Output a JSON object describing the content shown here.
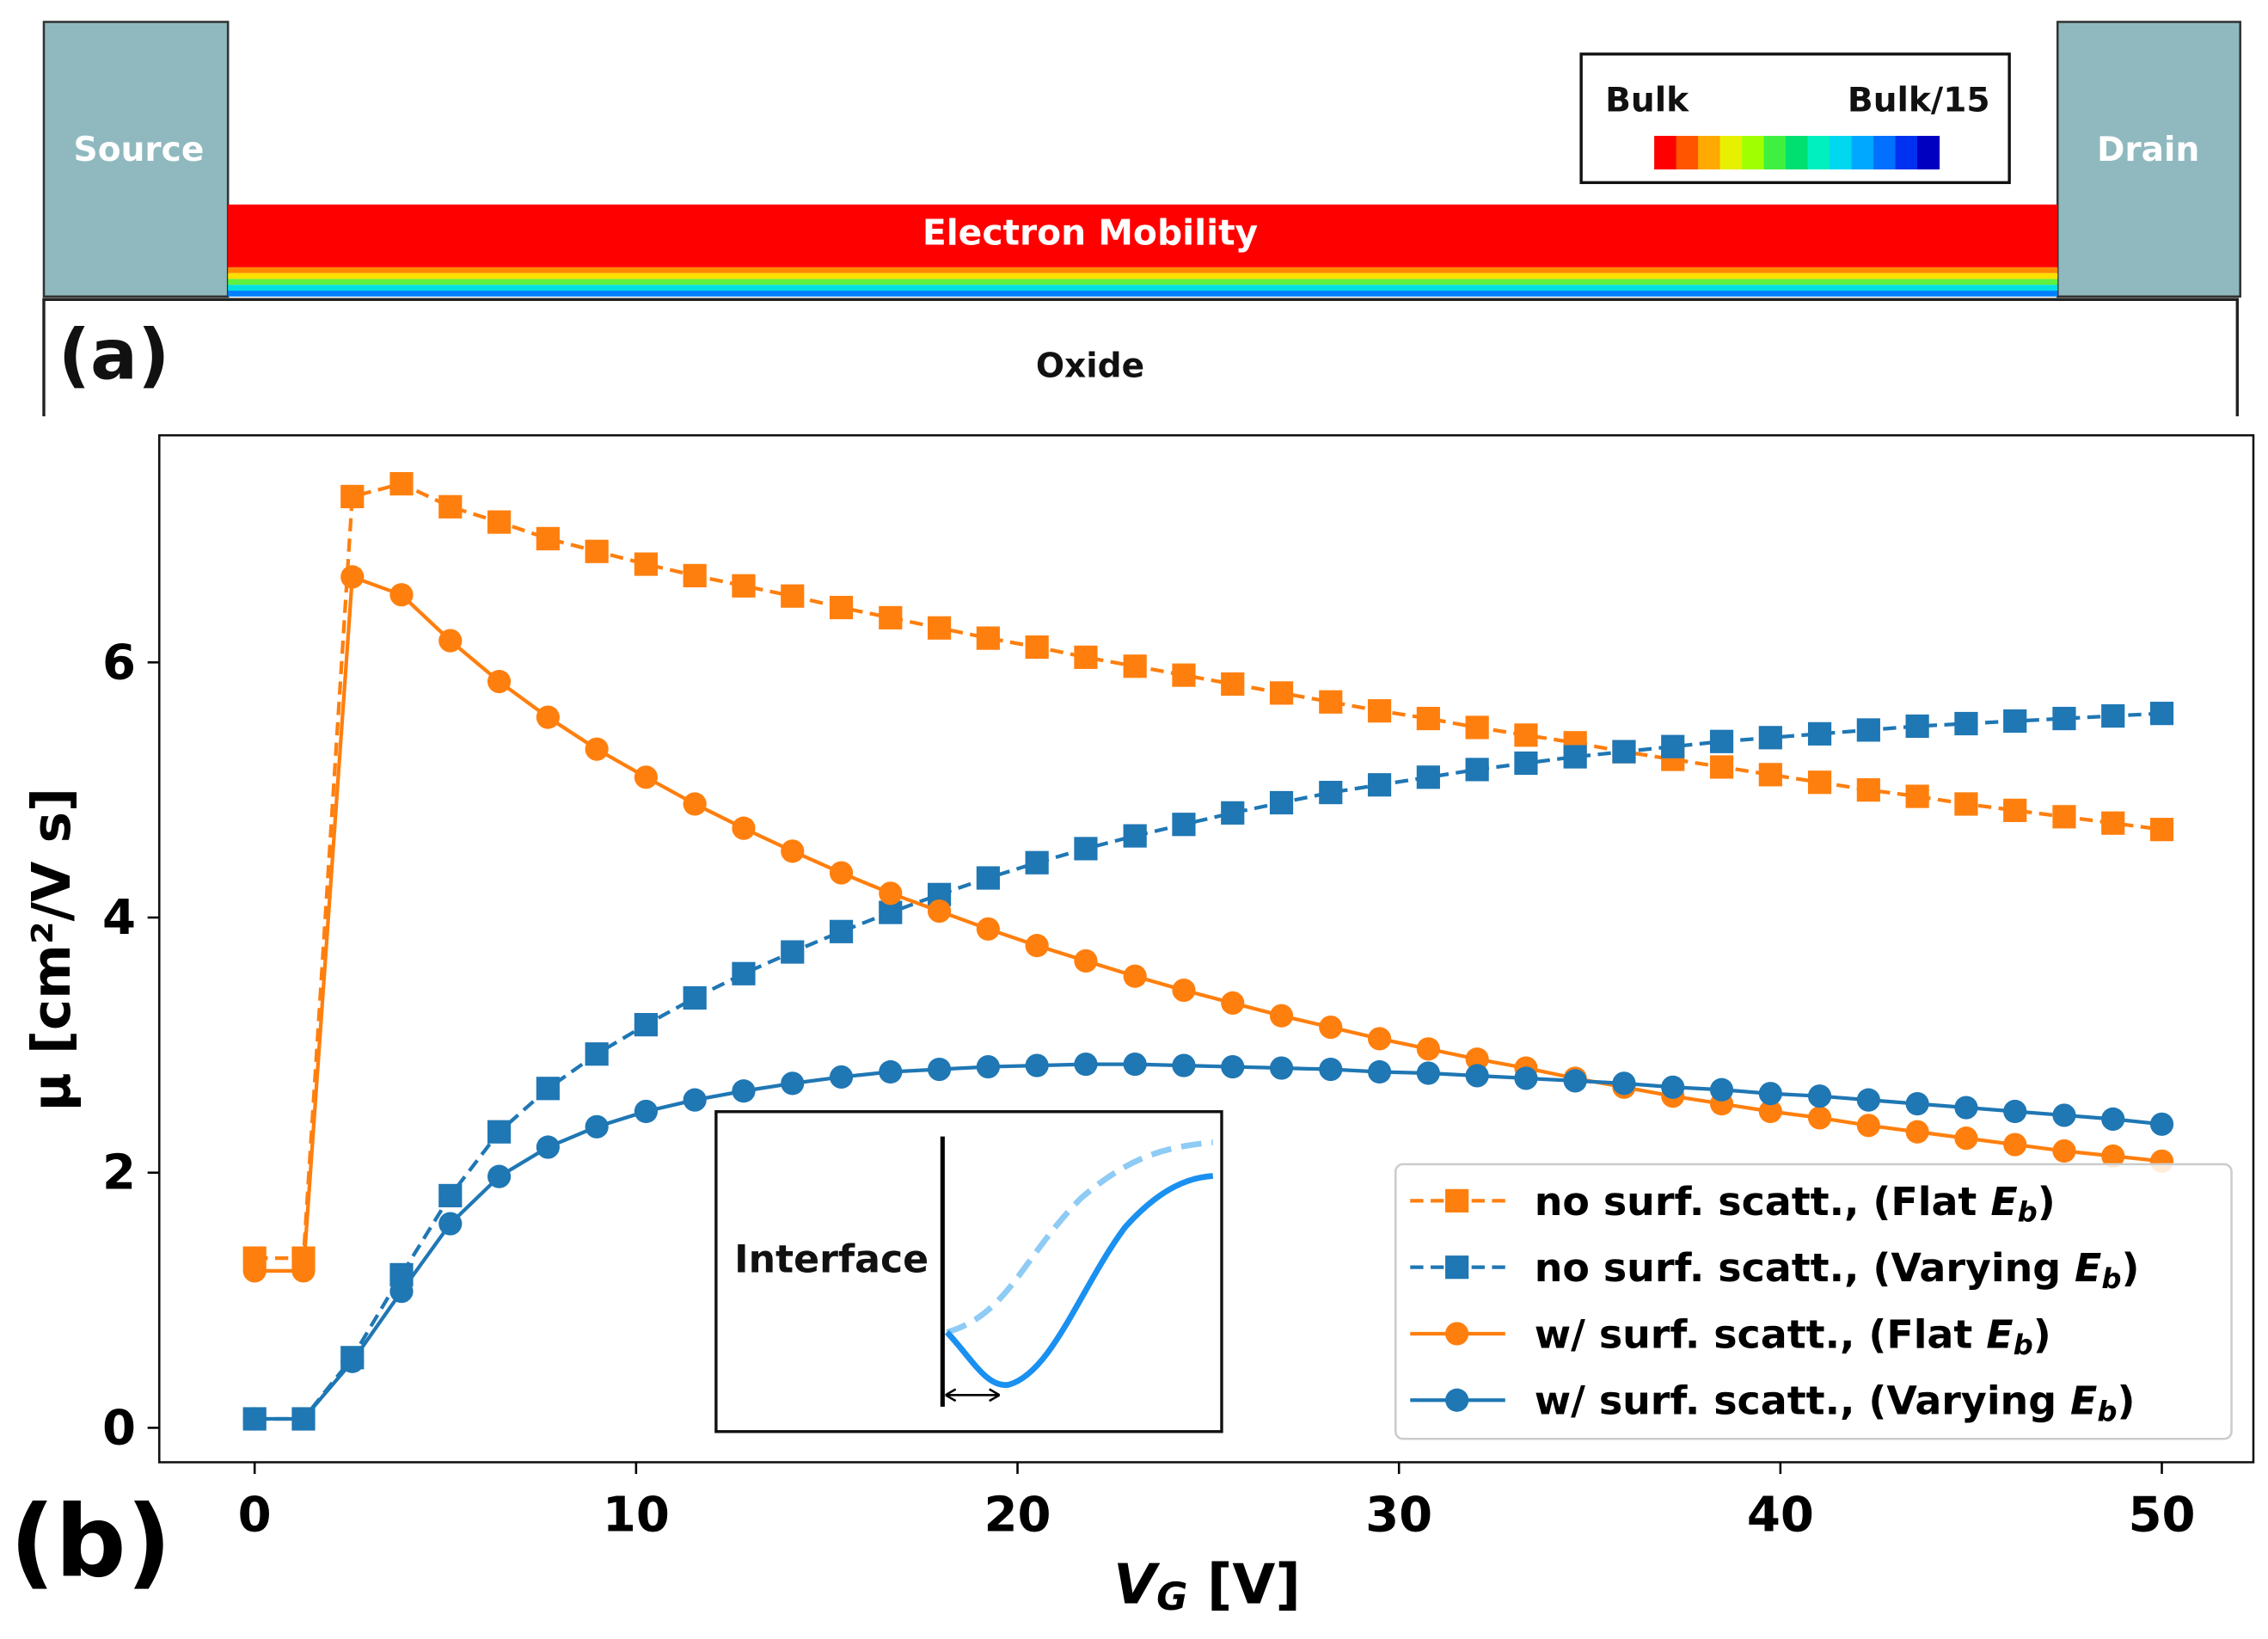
{
  "panel_a": {
    "label": "(a)",
    "source": "Source",
    "drain": "Drain",
    "channel": "Electron Mobility",
    "oxide": "Oxide",
    "colorbar_high": "Bulk",
    "colorbar_low": "Bulk/15",
    "colorbar_colors": [
      "#ff0000",
      "#ff5500",
      "#ffaa00",
      "#e6f000",
      "#a0ff00",
      "#40f040",
      "#00e070",
      "#00f0c0",
      "#00d8f0",
      "#00a8ff",
      "#0070ff",
      "#0030f0",
      "#0000c0"
    ]
  },
  "inset": {
    "label": "Interface"
  },
  "chart_data": {
    "type": "line",
    "panel_label": "(b)",
    "x_label": "VG [V]",
    "y_label": "μ [cm²/V s]",
    "x": [
      0,
      1.28,
      2.56,
      3.85,
      5.13,
      6.41,
      7.69,
      8.97,
      10.26,
      11.54,
      12.82,
      14.1,
      15.38,
      16.67,
      17.95,
      19.23,
      20.51,
      21.79,
      23.08,
      24.36,
      25.64,
      26.92,
      28.21,
      29.49,
      30.77,
      32.05,
      33.33,
      34.62,
      35.9,
      37.18,
      38.46,
      39.74,
      41.03,
      42.31,
      43.59,
      44.87,
      46.15,
      47.44,
      48.72,
      50
    ],
    "xlim": [
      -2.5,
      52.4
    ],
    "ylim": [
      -0.27,
      7.78
    ],
    "xticks": [
      0,
      10,
      20,
      30,
      40,
      50
    ],
    "yticks": [
      0,
      2,
      4,
      6
    ],
    "legend": "lower right",
    "series": [
      {
        "name": "no surf. scatt., (Flat Eb)",
        "color": "#ff7f0e",
        "dash": true,
        "marker": "square",
        "values": [
          1.33,
          1.33,
          7.3,
          7.4,
          7.22,
          7.1,
          6.97,
          6.87,
          6.77,
          6.68,
          6.6,
          6.52,
          6.43,
          6.35,
          6.27,
          6.19,
          6.12,
          6.04,
          5.97,
          5.9,
          5.83,
          5.76,
          5.69,
          5.62,
          5.56,
          5.49,
          5.43,
          5.37,
          5.3,
          5.24,
          5.18,
          5.12,
          5.06,
          5.0,
          4.95,
          4.89,
          4.84,
          4.79,
          4.74,
          4.69
        ]
      },
      {
        "name": "no surf. scatt., (Varying Eb)",
        "color": "#1f77b4",
        "dash": true,
        "marker": "square",
        "values": [
          0.07,
          0.07,
          0.55,
          1.2,
          1.82,
          2.32,
          2.66,
          2.93,
          3.16,
          3.37,
          3.56,
          3.73,
          3.89,
          4.04,
          4.18,
          4.31,
          4.43,
          4.54,
          4.64,
          4.73,
          4.82,
          4.9,
          4.98,
          5.04,
          5.1,
          5.16,
          5.21,
          5.26,
          5.3,
          5.34,
          5.38,
          5.41,
          5.44,
          5.47,
          5.5,
          5.52,
          5.54,
          5.56,
          5.58,
          5.6
        ]
      },
      {
        "name": "w/ surf. scatt., (Flat Eb)",
        "color": "#ff7f0e",
        "dash": false,
        "marker": "circle",
        "values": [
          1.23,
          1.23,
          6.67,
          6.53,
          6.17,
          5.85,
          5.57,
          5.32,
          5.1,
          4.89,
          4.7,
          4.52,
          4.35,
          4.19,
          4.05,
          3.91,
          3.78,
          3.66,
          3.54,
          3.43,
          3.33,
          3.23,
          3.14,
          3.05,
          2.97,
          2.89,
          2.82,
          2.74,
          2.67,
          2.6,
          2.54,
          2.48,
          2.43,
          2.37,
          2.32,
          2.27,
          2.22,
          2.17,
          2.13,
          2.09
        ]
      },
      {
        "name": "w/ surf. scatt., (Varying Eb)",
        "color": "#1f77b4",
        "dash": false,
        "marker": "circle",
        "values": [
          0.07,
          0.07,
          0.52,
          1.07,
          1.6,
          1.97,
          2.2,
          2.36,
          2.48,
          2.57,
          2.64,
          2.7,
          2.75,
          2.79,
          2.81,
          2.83,
          2.84,
          2.85,
          2.85,
          2.84,
          2.83,
          2.82,
          2.81,
          2.79,
          2.78,
          2.76,
          2.74,
          2.72,
          2.7,
          2.67,
          2.65,
          2.62,
          2.6,
          2.57,
          2.54,
          2.51,
          2.48,
          2.45,
          2.42,
          2.38
        ]
      }
    ]
  }
}
